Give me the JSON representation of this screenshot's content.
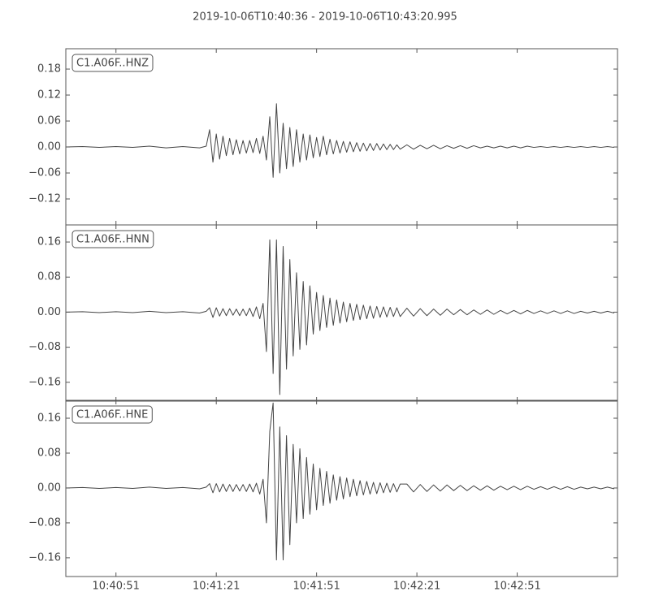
{
  "title": "2019-10-06T10:40:36  -  2019-10-06T10:43:20.995",
  "chart_data": [
    {
      "type": "line",
      "label": "C1.A06F..HNZ",
      "color": "#444444",
      "x": [
        0,
        5,
        10,
        15,
        20,
        25,
        30,
        35,
        40,
        42,
        43,
        44,
        45,
        46,
        47,
        48,
        49,
        50,
        51,
        52,
        53,
        54,
        55,
        56,
        57,
        58,
        59,
        60,
        61,
        62,
        63,
        64,
        65,
        66,
        67,
        68,
        69,
        70,
        71,
        72,
        73,
        74,
        75,
        76,
        77,
        78,
        79,
        80,
        81,
        82,
        83,
        84,
        85,
        86,
        87,
        88,
        89,
        90,
        91,
        92,
        93,
        94,
        95,
        96,
        97,
        98,
        99,
        100,
        102,
        104,
        106,
        108,
        110,
        112,
        114,
        116,
        118,
        120,
        122,
        124,
        126,
        128,
        130,
        132,
        134,
        136,
        138,
        140,
        142,
        144,
        146,
        148,
        150,
        152,
        154,
        156,
        158,
        160,
        162,
        164
      ],
      "values": [
        0,
        0.001,
        -0.001,
        0.001,
        -0.001,
        0.002,
        -0.002,
        0.001,
        -0.002,
        0.002,
        0.04,
        -0.035,
        0.03,
        -0.028,
        0.025,
        -0.02,
        0.02,
        -0.018,
        0.017,
        -0.016,
        0.015,
        -0.014,
        0.015,
        -0.013,
        0.02,
        -0.015,
        0.025,
        -0.03,
        0.07,
        -0.07,
        0.1,
        -0.06,
        0.055,
        -0.05,
        0.045,
        -0.045,
        0.04,
        -0.035,
        0.03,
        -0.03,
        0.028,
        -0.025,
        0.022,
        -0.022,
        0.025,
        -0.018,
        0.018,
        -0.016,
        0.015,
        -0.014,
        0.013,
        -0.012,
        0.012,
        -0.011,
        0.01,
        -0.01,
        0.009,
        -0.009,
        0.008,
        -0.008,
        0.008,
        -0.007,
        0.007,
        -0.006,
        0.006,
        -0.006,
        0.005,
        -0.005,
        0.005,
        -0.005,
        0.004,
        -0.004,
        0.004,
        -0.004,
        0.003,
        -0.003,
        0.003,
        -0.003,
        0.003,
        -0.002,
        0.002,
        -0.002,
        0.002,
        -0.002,
        0.002,
        -0.002,
        0.002,
        -0.001,
        0.001,
        -0.001,
        0.001,
        -0.001,
        0.001,
        -0.001,
        0.001,
        -0.001,
        0.001,
        -0.001,
        0.001,
        -0.001
      ],
      "ylim": [
        -0.18,
        0.227
      ],
      "yticks": [
        {
          "value": -0.12,
          "label": "−0.12"
        },
        {
          "value": -0.06,
          "label": "−0.06"
        },
        {
          "value": 0,
          "label": "0.00"
        },
        0.06,
        0.12,
        0.18
      ]
    },
    {
      "type": "line",
      "label": "C1.A06F..HNN",
      "color": "#444444",
      "x": [
        0,
        5,
        10,
        15,
        20,
        25,
        30,
        35,
        40,
        42,
        43,
        44,
        45,
        46,
        47,
        48,
        49,
        50,
        51,
        52,
        53,
        54,
        55,
        56,
        57,
        58,
        59,
        60,
        61,
        62,
        63,
        64,
        65,
        66,
        67,
        68,
        69,
        70,
        71,
        72,
        73,
        74,
        75,
        76,
        77,
        78,
        79,
        80,
        81,
        82,
        83,
        84,
        85,
        86,
        87,
        88,
        89,
        90,
        91,
        92,
        93,
        94,
        95,
        96,
        97,
        98,
        99,
        100,
        102,
        104,
        106,
        108,
        110,
        112,
        114,
        116,
        118,
        120,
        122,
        124,
        126,
        128,
        130,
        132,
        134,
        136,
        138,
        140,
        142,
        144,
        146,
        148,
        150,
        152,
        154,
        156,
        158,
        160,
        162,
        164
      ],
      "values": [
        0,
        0.001,
        -0.001,
        0.001,
        -0.001,
        0.002,
        -0.001,
        0.001,
        -0.002,
        0.002,
        0.01,
        -0.012,
        0.01,
        -0.009,
        0.008,
        -0.008,
        0.008,
        -0.007,
        0.007,
        -0.008,
        0.007,
        -0.008,
        0.009,
        -0.01,
        0.012,
        -0.015,
        0.02,
        -0.09,
        0.165,
        -0.14,
        0.165,
        -0.188,
        0.15,
        -0.13,
        0.12,
        -0.1,
        0.09,
        -0.085,
        0.07,
        -0.075,
        0.06,
        -0.05,
        0.045,
        -0.042,
        0.038,
        -0.035,
        0.032,
        -0.03,
        0.028,
        -0.025,
        0.023,
        -0.022,
        0.02,
        -0.019,
        0.018,
        -0.017,
        0.016,
        -0.015,
        0.014,
        -0.014,
        0.013,
        -0.012,
        0.012,
        -0.011,
        0.011,
        -0.01,
        0.01,
        -0.01,
        0.009,
        -0.009,
        0.008,
        -0.008,
        0.007,
        -0.007,
        0.007,
        -0.006,
        0.006,
        -0.006,
        0.005,
        -0.005,
        0.005,
        -0.005,
        0.004,
        -0.004,
        0.004,
        -0.004,
        0.004,
        -0.003,
        0.003,
        -0.003,
        0.003,
        -0.003,
        0.003,
        -0.003,
        0.002,
        -0.002,
        0.002,
        -0.002,
        0.002,
        -0.002
      ],
      "ylim": [
        -0.203,
        0.199
      ],
      "yticks": [
        {
          "value": -0.16,
          "label": "−0.16"
        },
        {
          "value": -0.08,
          "label": "−0.08"
        },
        {
          "value": 0,
          "label": "0.00"
        },
        0.08,
        0.16
      ]
    },
    {
      "type": "line",
      "label": "C1.A06F..HNE",
      "color": "#444444",
      "x": [
        0,
        5,
        10,
        15,
        20,
        25,
        30,
        35,
        40,
        42,
        43,
        44,
        45,
        46,
        47,
        48,
        49,
        50,
        51,
        52,
        53,
        54,
        55,
        56,
        57,
        58,
        59,
        60,
        61,
        62,
        63,
        64,
        65,
        66,
        67,
        68,
        69,
        70,
        71,
        72,
        73,
        74,
        75,
        76,
        77,
        78,
        79,
        80,
        81,
        82,
        83,
        84,
        85,
        86,
        87,
        88,
        89,
        90,
        91,
        92,
        93,
        94,
        95,
        96,
        97,
        98,
        99,
        100,
        102,
        104,
        106,
        108,
        110,
        112,
        114,
        116,
        118,
        120,
        122,
        124,
        126,
        128,
        130,
        132,
        134,
        136,
        138,
        140,
        142,
        144,
        146,
        148,
        150,
        152,
        154,
        156,
        158,
        160,
        162,
        164
      ],
      "values": [
        0,
        0.001,
        -0.001,
        0.001,
        -0.001,
        0.002,
        -0.001,
        0.001,
        -0.002,
        0.002,
        0.01,
        -0.011,
        0.01,
        -0.009,
        0.009,
        -0.008,
        0.008,
        -0.008,
        0.008,
        -0.007,
        0.008,
        -0.008,
        0.009,
        -0.009,
        0.011,
        -0.014,
        0.02,
        -0.08,
        0.13,
        0.195,
        -0.165,
        0.14,
        -0.165,
        0.12,
        -0.13,
        0.1,
        -0.08,
        0.09,
        -0.07,
        0.07,
        -0.06,
        0.055,
        -0.05,
        0.045,
        -0.04,
        0.038,
        -0.035,
        0.03,
        -0.028,
        0.026,
        -0.025,
        0.023,
        -0.02,
        0.02,
        -0.018,
        0.017,
        -0.016,
        0.015,
        -0.014,
        0.013,
        -0.013,
        0.012,
        -0.011,
        0.011,
        -0.01,
        0.01,
        -0.009,
        0.009,
        0.009,
        -0.009,
        0.008,
        -0.008,
        0.007,
        -0.007,
        0.007,
        -0.006,
        0.006,
        -0.006,
        0.005,
        -0.005,
        0.005,
        -0.005,
        0.004,
        -0.004,
        0.004,
        -0.004,
        0.004,
        -0.003,
        0.003,
        -0.003,
        0.003,
        -0.003,
        0.003,
        -0.003,
        0.002,
        -0.002,
        0.002,
        -0.002,
        0.002,
        -0.002
      ],
      "ylim": [
        -0.203,
        0.201
      ],
      "yticks": [
        {
          "value": -0.16,
          "label": "−0.16"
        },
        {
          "value": -0.08,
          "label": "−0.08"
        },
        {
          "value": 0,
          "label": "0.00"
        },
        0.08,
        0.16
      ],
      "xlim": [
        0,
        164.995
      ],
      "xticks": [
        {
          "value": 15,
          "label": "10:40:51"
        },
        {
          "value": 45,
          "label": "10:41:21"
        },
        {
          "value": 75,
          "label": "10:41:51"
        },
        {
          "value": 105,
          "label": "10:42:21"
        },
        {
          "value": 135,
          "label": "10:42:51"
        }
      ]
    }
  ]
}
